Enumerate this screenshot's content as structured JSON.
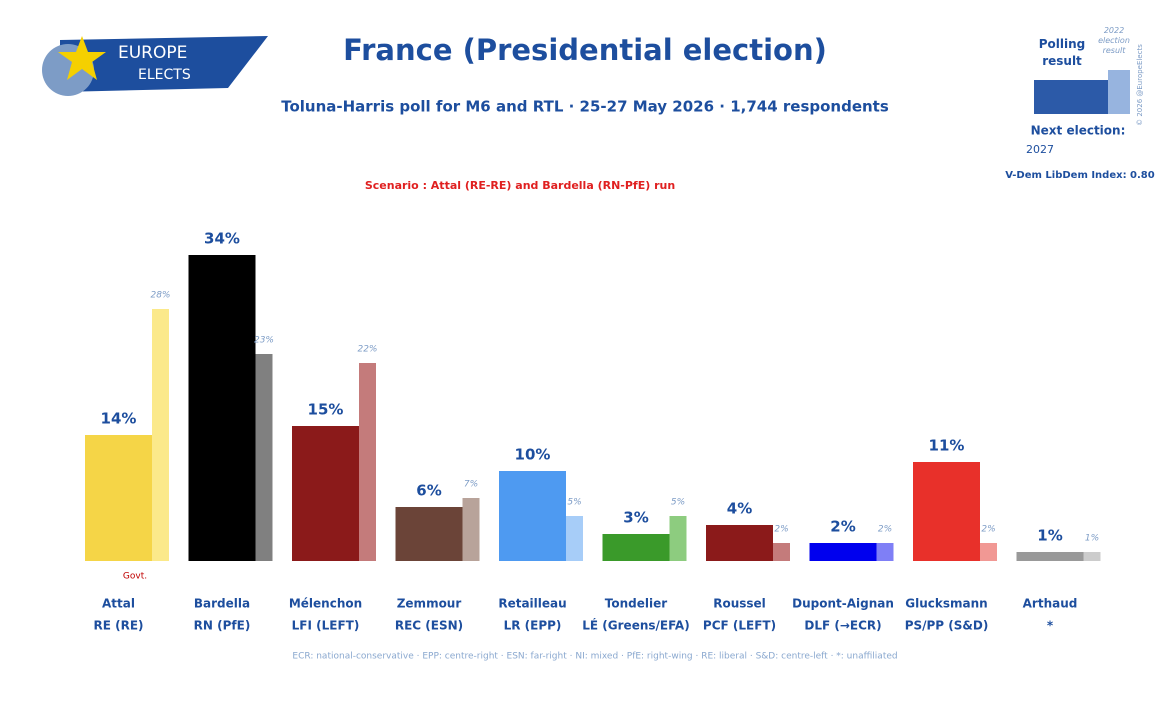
{
  "logo": {
    "line1": "EUROPE",
    "line2": "ELECTS"
  },
  "chart_data": {
    "type": "bar",
    "title": "France (Presidential election)",
    "subtitle": "Toluna-Harris poll for M6 and RTL · 25-27 May 2026 · 1,744 respondents",
    "scenario": "Scenario : Attal (RE-RE) and Bardella (RN-PfE) run",
    "annotation": "Govt.",
    "categories": [
      "Attal",
      "Bardella",
      "Mélenchon",
      "Zemmour",
      "Retailleau",
      "Tondelier",
      "Roussel",
      "Dupont-Aignan",
      "Glucksmann",
      "Arthaud"
    ],
    "parties": [
      "RE (RE)",
      "RN (PfE)",
      "LFI (LEFT)",
      "REC (ESN)",
      "LR (EPP)",
      "LÉ (Greens/EFA)",
      "PCF (LEFT)",
      "DLF (→ECR)",
      "PS/PP (S&D)",
      "*"
    ],
    "series": [
      {
        "name": "Polling result",
        "values": [
          14,
          34,
          15,
          6,
          10,
          3,
          4,
          2,
          11,
          1
        ],
        "value_labels": [
          "14%",
          "34%",
          "15%",
          "6%",
          "10%",
          "3%",
          "4%",
          "2%",
          "11%",
          "1%"
        ],
        "colors": [
          "#f5d547",
          "#000000",
          "#8b1a1a",
          "#6b4438",
          "#4e9af1",
          "#3a9a2a",
          "#8b1a1a",
          "#0000ee",
          "#e8302a",
          "#999999"
        ]
      },
      {
        "name": "2022 election result",
        "values": [
          28,
          23,
          22,
          7,
          5,
          5,
          2,
          2,
          2,
          1
        ],
        "value_labels": [
          "28%",
          "23%",
          "22%",
          "7%",
          "5%",
          "5%",
          "2%",
          "2%",
          "2%",
          "1%"
        ],
        "colors": [
          "#fbe98a",
          "#808080",
          "#c47b7b",
          "#b8a39a",
          "#a7cdf8",
          "#8dcc7f",
          "#c47b7b",
          "#7f7ff6",
          "#f19894",
          "#cccccc"
        ]
      }
    ],
    "footnote": "ECR: national-conservative · EPP: centre-right · ESN: far-right · NI: mixed · PfE: right-wing · RE: liberal · S&D: centre-left · *: unaffiliated",
    "copyright": "© 2026 @EuropeElects",
    "next_election_label": "Next election:",
    "next_election": "2027",
    "vdem": "V-Dem LibDem Index: 0.80"
  }
}
